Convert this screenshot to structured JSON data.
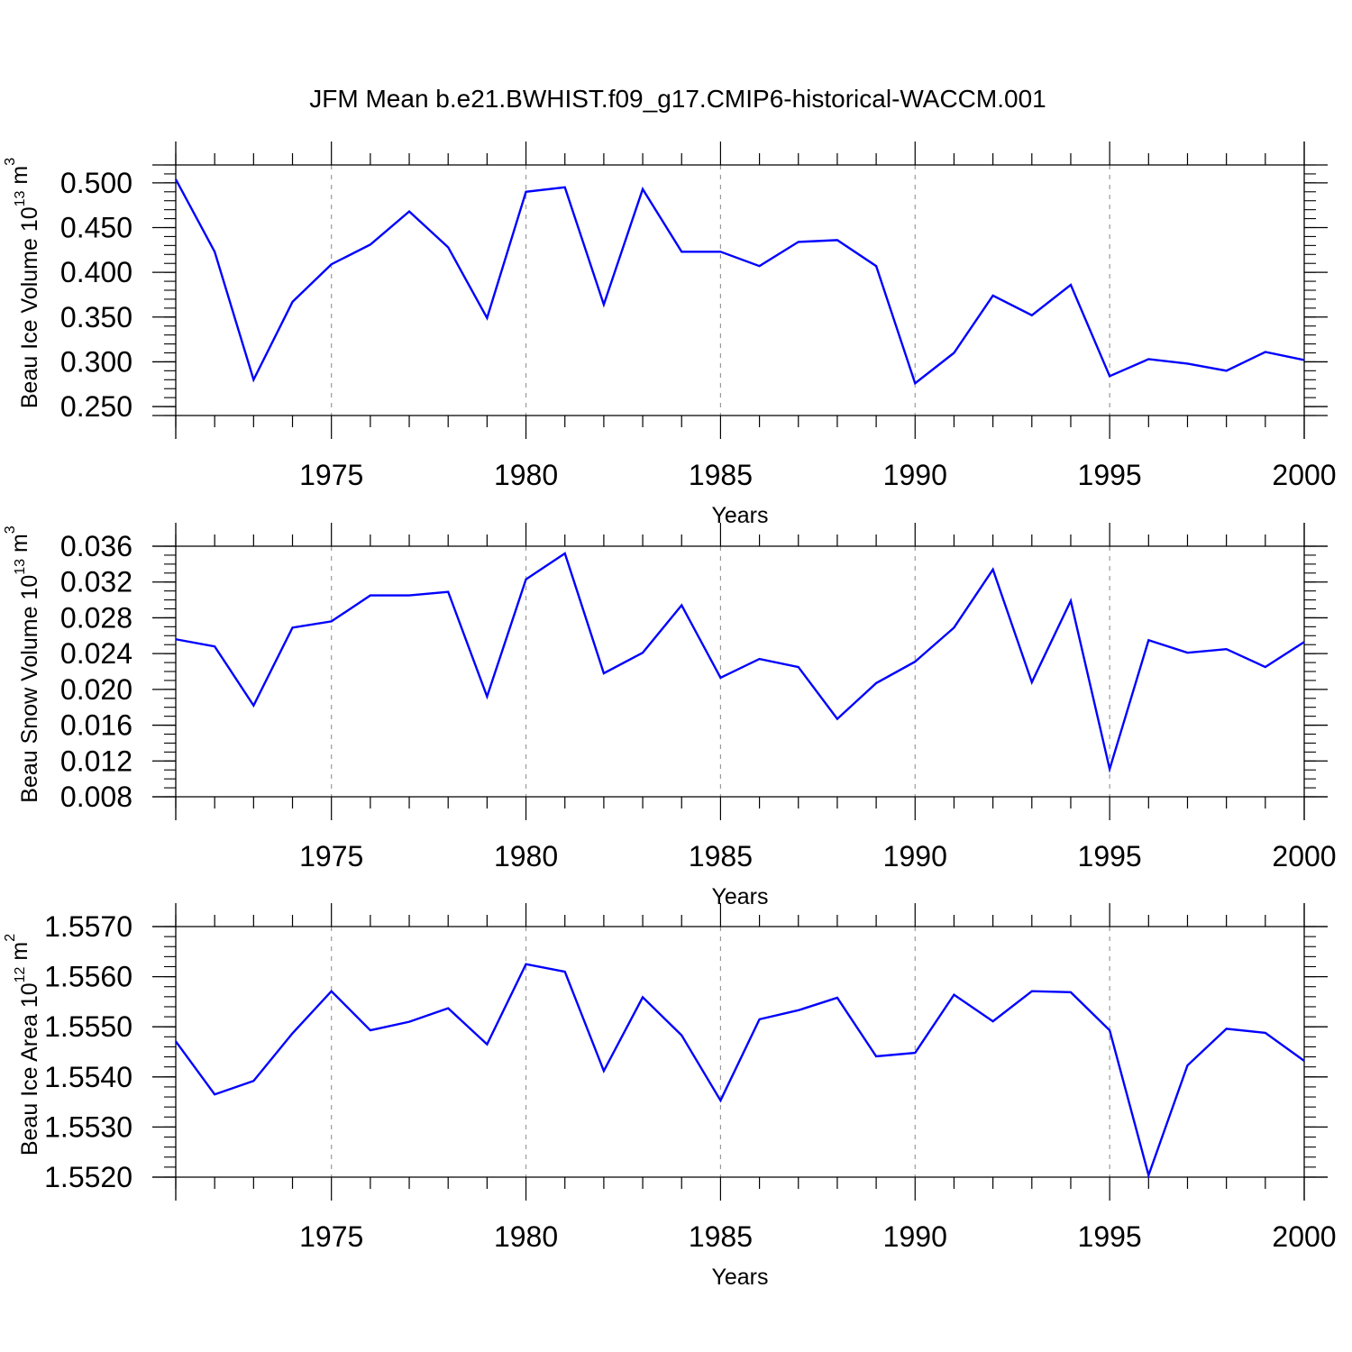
{
  "title": "JFM Mean b.e21.BWHIST.f09_g17.CMIP6-historical-WACCM.001",
  "style": {
    "line_color": "#0000ff",
    "grid_color": "#999999",
    "axis_color": "#000000"
  },
  "chart_data": [
    {
      "type": "line",
      "ylabel": {
        "prefix": "Beau Ice Volume 10",
        "exponent": "13",
        "unit": " m",
        "unit_exponent": "3"
      },
      "xlabel": "Years",
      "xlim": [
        1971,
        2000
      ],
      "ylim": [
        0.24,
        0.52
      ],
      "x_ticks": [
        1975,
        1980,
        1985,
        1990,
        1995,
        2000
      ],
      "x_tick_labels": [
        "1975",
        "1980",
        "1985",
        "1990",
        "1995",
        "2000"
      ],
      "y_ticks": [
        0.25,
        0.3,
        0.35,
        0.4,
        0.45,
        0.5
      ],
      "y_tick_labels": [
        "0.250",
        "0.300",
        "0.350",
        "0.400",
        "0.450",
        "0.500"
      ],
      "y_minor_step": 0.01,
      "grid": "vertical dashed at major x ticks",
      "x": [
        1971,
        1972,
        1973,
        1974,
        1975,
        1976,
        1977,
        1978,
        1979,
        1980,
        1981,
        1982,
        1983,
        1984,
        1985,
        1986,
        1987,
        1988,
        1989,
        1990,
        1991,
        1992,
        1993,
        1994,
        1995,
        1996,
        1997,
        1998,
        1999,
        2000
      ],
      "series": [
        {
          "values": [
            0.504,
            0.423,
            0.28,
            0.367,
            0.409,
            0.431,
            0.468,
            0.428,
            0.349,
            0.49,
            0.495,
            0.364,
            0.493,
            0.423,
            0.423,
            0.407,
            0.434,
            0.436,
            0.407,
            0.276,
            0.31,
            0.374,
            0.352,
            0.386,
            0.284,
            0.303,
            0.298,
            0.29,
            0.311,
            0.302
          ]
        }
      ]
    },
    {
      "type": "line",
      "ylabel": {
        "prefix": "Beau Snow Volume 10",
        "exponent": "13",
        "unit": " m",
        "unit_exponent": "3"
      },
      "xlabel": "Years",
      "xlim": [
        1971,
        2000
      ],
      "ylim": [
        0.008,
        0.036
      ],
      "x_ticks": [
        1975,
        1980,
        1985,
        1990,
        1995,
        2000
      ],
      "x_tick_labels": [
        "1975",
        "1980",
        "1985",
        "1990",
        "1995",
        "2000"
      ],
      "y_ticks": [
        0.008,
        0.012,
        0.016,
        0.02,
        0.024,
        0.028,
        0.032,
        0.036
      ],
      "y_tick_labels": [
        "0.008",
        "0.012",
        "0.016",
        "0.020",
        "0.024",
        "0.028",
        "0.032",
        "0.036"
      ],
      "y_minor_step": 0.001,
      "grid": "vertical dashed at major x ticks",
      "x": [
        1971,
        1972,
        1973,
        1974,
        1975,
        1976,
        1977,
        1978,
        1979,
        1980,
        1981,
        1982,
        1983,
        1984,
        1985,
        1986,
        1987,
        1988,
        1989,
        1990,
        1991,
        1992,
        1993,
        1994,
        1995,
        1996,
        1997,
        1998,
        1999,
        2000
      ],
      "series": [
        {
          "values": [
            0.0256,
            0.0248,
            0.0182,
            0.0269,
            0.0276,
            0.0305,
            0.0305,
            0.0309,
            0.0192,
            0.0323,
            0.0352,
            0.0218,
            0.0241,
            0.0294,
            0.0213,
            0.0234,
            0.0225,
            0.0167,
            0.0207,
            0.0231,
            0.0269,
            0.0334,
            0.0208,
            0.0299,
            0.0111,
            0.0255,
            0.0241,
            0.0245,
            0.0225,
            0.0253
          ]
        }
      ]
    },
    {
      "type": "line",
      "ylabel": {
        "prefix": "Beau Ice Area 10",
        "exponent": "12",
        "unit": " m",
        "unit_exponent": "2"
      },
      "xlabel": "Years",
      "xlim": [
        1971,
        2000
      ],
      "ylim": [
        1.552,
        1.557
      ],
      "x_ticks": [
        1975,
        1980,
        1985,
        1990,
        1995,
        2000
      ],
      "x_tick_labels": [
        "1975",
        "1980",
        "1985",
        "1990",
        "1995",
        "2000"
      ],
      "y_ticks": [
        1.552,
        1.553,
        1.554,
        1.555,
        1.556,
        1.557
      ],
      "y_tick_labels": [
        "1.5520",
        "1.5530",
        "1.5540",
        "1.5550",
        "1.5560",
        "1.5570"
      ],
      "y_minor_step": 0.0002,
      "grid": "vertical dashed at major x ticks",
      "x": [
        1971,
        1972,
        1973,
        1974,
        1975,
        1976,
        1977,
        1978,
        1979,
        1980,
        1981,
        1982,
        1983,
        1984,
        1985,
        1986,
        1987,
        1988,
        1989,
        1990,
        1991,
        1992,
        1993,
        1994,
        1995,
        1996,
        1997,
        1998,
        1999,
        2000
      ],
      "series": [
        {
          "values": [
            1.55471,
            1.55365,
            1.55392,
            1.55487,
            1.55571,
            1.55493,
            1.5551,
            1.55537,
            1.55465,
            1.55625,
            1.5561,
            1.55412,
            1.55559,
            1.55483,
            1.55353,
            1.55515,
            1.55533,
            1.55558,
            1.55441,
            1.55448,
            1.55564,
            1.55511,
            1.55571,
            1.55569,
            1.55493,
            1.55204,
            1.55423,
            1.55496,
            1.55488,
            1.55432
          ]
        }
      ]
    }
  ]
}
